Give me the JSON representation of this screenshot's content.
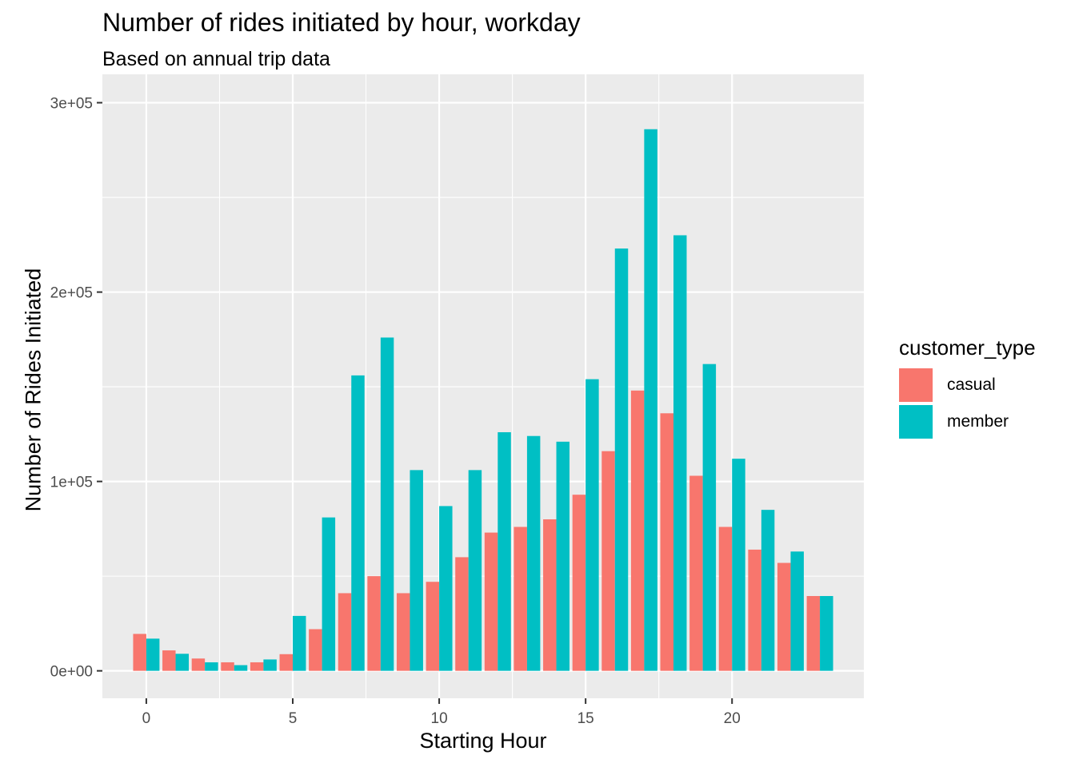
{
  "chart_data": {
    "type": "bar",
    "title": "Number of rides initiated by hour, workday",
    "subtitle": "Based on annual trip data",
    "xlabel": "Starting Hour",
    "ylabel": "Number of Rides Initiated",
    "x": [
      0,
      1,
      2,
      3,
      4,
      5,
      6,
      7,
      8,
      9,
      10,
      11,
      12,
      13,
      14,
      15,
      16,
      17,
      18,
      19,
      20,
      21,
      22,
      23
    ],
    "series": [
      {
        "name": "casual",
        "color": "#F8766D",
        "values": [
          19500,
          10800,
          6500,
          4500,
          4500,
          8800,
          22000,
          41000,
          50000,
          41000,
          47000,
          60000,
          73000,
          76000,
          80000,
          93000,
          116000,
          148000,
          136000,
          103000,
          76000,
          64000,
          57000,
          39500
        ]
      },
      {
        "name": "member",
        "color": "#00BFC4",
        "values": [
          17000,
          9000,
          4500,
          3000,
          6000,
          29000,
          81000,
          156000,
          176000,
          106000,
          87000,
          106000,
          126000,
          124000,
          121000,
          154000,
          223000,
          286000,
          230000,
          162000,
          112000,
          85000,
          63000,
          39500
        ]
      }
    ],
    "xlim": [
      -1.5,
      24.5
    ],
    "ylim": [
      -14500,
      315000
    ],
    "xticks": [
      0,
      5,
      10,
      15,
      20
    ],
    "yticks": [
      0,
      100000,
      200000,
      300000
    ],
    "ytick_labels": [
      "0e+00",
      "1e+05",
      "2e+05",
      "3e+05"
    ],
    "grid": true,
    "legend": {
      "title": "customer_type",
      "position": "right"
    }
  }
}
